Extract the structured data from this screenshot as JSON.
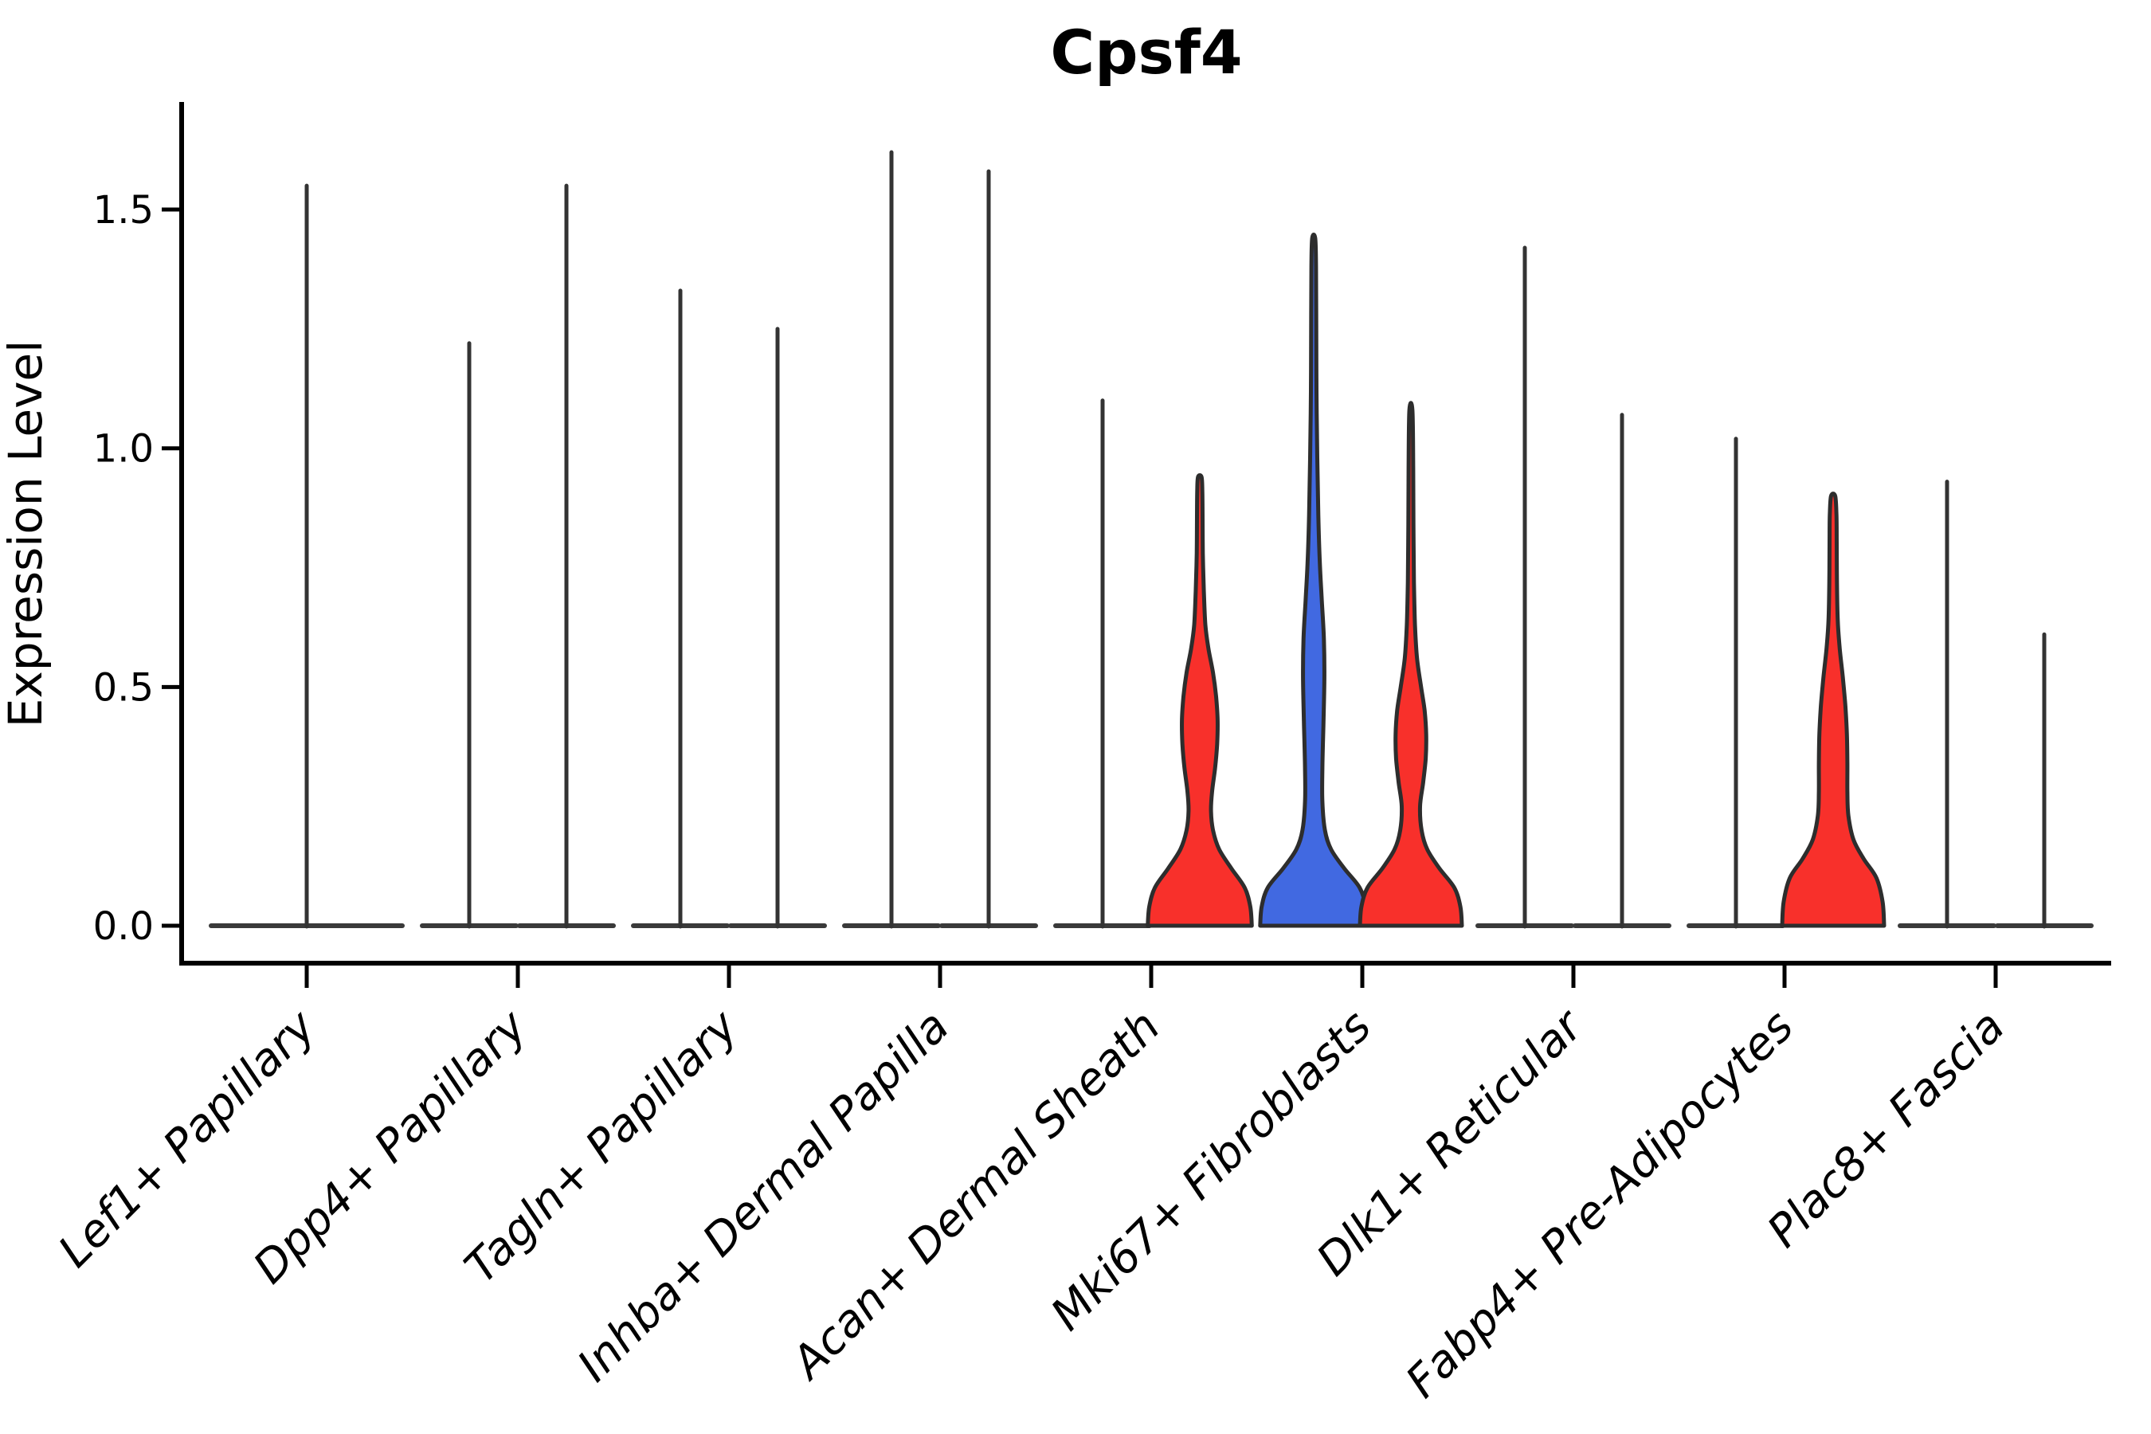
{
  "title": "Cpsf4",
  "ylabel": "Expression Level",
  "chart_data": {
    "type": "violin",
    "title": "Cpsf4",
    "xlabel": "",
    "ylabel": "Expression Level",
    "ylim": [
      -0.08,
      1.72
    ],
    "yticks": [
      0.0,
      0.5,
      1.0,
      1.5
    ],
    "ytick_labels": [
      "0.0",
      "0.5",
      "1.0",
      "1.5"
    ],
    "grid": false,
    "legend": "none",
    "categories": [
      "Lef1+ Papillary",
      "Dpp4+ Papillary",
      "Tagln+ Papillary",
      "Inhba+ Dermal Papilla",
      "Acan+ Dermal Sheath",
      "Mki67+ Fibroblasts",
      "Dlk1+ Reticular",
      "Fabp4+ Pre-Adipocytes",
      "Plac8+ Fascia"
    ],
    "violins": [
      {
        "cat": 0,
        "pos": "center",
        "kind": "spike",
        "fill": "none",
        "max": 1.55
      },
      {
        "cat": 1,
        "pos": "left",
        "kind": "spike",
        "fill": "none",
        "max": 1.22
      },
      {
        "cat": 1,
        "pos": "right",
        "kind": "spike",
        "fill": "none",
        "max": 1.55
      },
      {
        "cat": 2,
        "pos": "left",
        "kind": "spike",
        "fill": "none",
        "max": 1.33
      },
      {
        "cat": 2,
        "pos": "right",
        "kind": "spike",
        "fill": "none",
        "max": 1.25
      },
      {
        "cat": 3,
        "pos": "left",
        "kind": "spike",
        "fill": "none",
        "max": 1.62
      },
      {
        "cat": 3,
        "pos": "right",
        "kind": "spike",
        "fill": "none",
        "max": 1.58
      },
      {
        "cat": 4,
        "pos": "left",
        "kind": "spike",
        "fill": "none",
        "max": 1.1
      },
      {
        "cat": 4,
        "pos": "right",
        "kind": "violin",
        "fill": "red",
        "max": 0.94,
        "profile": [
          [
            0,
            1.02
          ],
          [
            0.04,
            0.99
          ],
          [
            0.08,
            0.88
          ],
          [
            0.12,
            0.62
          ],
          [
            0.16,
            0.38
          ],
          [
            0.2,
            0.26
          ],
          [
            0.24,
            0.22
          ],
          [
            0.28,
            0.24
          ],
          [
            0.33,
            0.3
          ],
          [
            0.38,
            0.34
          ],
          [
            0.43,
            0.35
          ],
          [
            0.48,
            0.32
          ],
          [
            0.53,
            0.26
          ],
          [
            0.58,
            0.17
          ],
          [
            0.63,
            0.11
          ],
          [
            0.7,
            0.08
          ],
          [
            0.78,
            0.06
          ],
          [
            0.86,
            0.055
          ],
          [
            0.91,
            0.05
          ],
          [
            0.94,
            0.035
          ]
        ]
      },
      {
        "cat": 5,
        "pos": "left",
        "kind": "violin",
        "fill": "blue",
        "max": 1.44,
        "profile": [
          [
            0,
            1.05
          ],
          [
            0.04,
            1.02
          ],
          [
            0.08,
            0.9
          ],
          [
            0.12,
            0.6
          ],
          [
            0.16,
            0.34
          ],
          [
            0.2,
            0.22
          ],
          [
            0.26,
            0.17
          ],
          [
            0.33,
            0.17
          ],
          [
            0.42,
            0.19
          ],
          [
            0.52,
            0.21
          ],
          [
            0.6,
            0.2
          ],
          [
            0.68,
            0.16
          ],
          [
            0.76,
            0.12
          ],
          [
            0.86,
            0.09
          ],
          [
            0.98,
            0.07
          ],
          [
            1.12,
            0.055
          ],
          [
            1.26,
            0.05
          ],
          [
            1.38,
            0.045
          ],
          [
            1.44,
            0.03
          ]
        ]
      },
      {
        "cat": 5,
        "pos": "right",
        "kind": "violin",
        "fill": "red",
        "max": 1.08,
        "profile": [
          [
            0,
            1.0
          ],
          [
            0.04,
            0.97
          ],
          [
            0.08,
            0.85
          ],
          [
            0.12,
            0.56
          ],
          [
            0.16,
            0.32
          ],
          [
            0.2,
            0.21
          ],
          [
            0.25,
            0.18
          ],
          [
            0.3,
            0.24
          ],
          [
            0.35,
            0.29
          ],
          [
            0.4,
            0.3
          ],
          [
            0.45,
            0.27
          ],
          [
            0.5,
            0.2
          ],
          [
            0.56,
            0.12
          ],
          [
            0.63,
            0.08
          ],
          [
            0.72,
            0.06
          ],
          [
            0.84,
            0.05
          ],
          [
            0.96,
            0.045
          ],
          [
            1.08,
            0.03
          ]
        ]
      },
      {
        "cat": 6,
        "pos": "left",
        "kind": "spike",
        "fill": "none",
        "max": 1.42
      },
      {
        "cat": 6,
        "pos": "right",
        "kind": "spike",
        "fill": "none",
        "max": 1.07
      },
      {
        "cat": 7,
        "pos": "left",
        "kind": "spike",
        "fill": "none",
        "max": 1.02
      },
      {
        "cat": 7,
        "pos": "right",
        "kind": "violin",
        "fill": "red",
        "max": 0.9,
        "profile": [
          [
            0,
            1.0
          ],
          [
            0.05,
            0.97
          ],
          [
            0.1,
            0.85
          ],
          [
            0.14,
            0.6
          ],
          [
            0.18,
            0.4
          ],
          [
            0.23,
            0.3
          ],
          [
            0.28,
            0.28
          ],
          [
            0.34,
            0.28
          ],
          [
            0.4,
            0.27
          ],
          [
            0.46,
            0.24
          ],
          [
            0.52,
            0.19
          ],
          [
            0.58,
            0.13
          ],
          [
            0.64,
            0.09
          ],
          [
            0.72,
            0.075
          ],
          [
            0.8,
            0.07
          ],
          [
            0.86,
            0.065
          ],
          [
            0.9,
            0.04
          ]
        ]
      },
      {
        "cat": 8,
        "pos": "left",
        "kind": "spike",
        "fill": "none",
        "max": 0.93
      },
      {
        "cat": 8,
        "pos": "right",
        "kind": "spike",
        "fill": "none",
        "max": 0.61
      }
    ],
    "colors": {
      "red": "#F8302B",
      "blue": "#4169E1",
      "outline": "#2D2D2D",
      "spike": "#333333",
      "axis": "#000000",
      "background": "#FFFFFF"
    }
  }
}
